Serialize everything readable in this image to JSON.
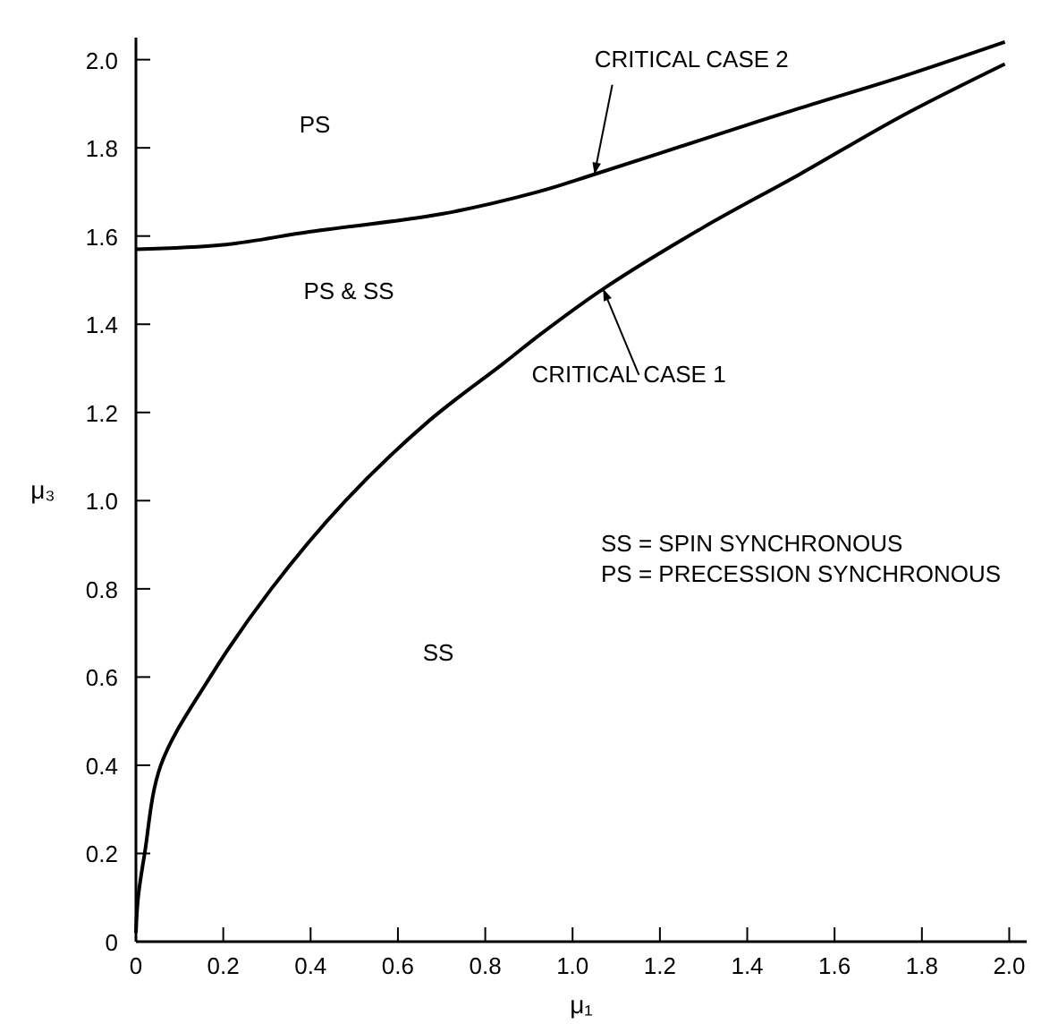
{
  "chart_data": {
    "type": "line",
    "xlabel": "μ₁",
    "ylabel": "μ₃",
    "xlim": [
      0,
      2.04
    ],
    "ylim": [
      0,
      2.05
    ],
    "xticks": [
      0,
      0.2,
      0.4,
      0.6,
      0.8,
      {
        "value": 1,
        "label": "1.0"
      },
      1.2,
      1.4,
      1.6,
      1.8,
      {
        "value": 2,
        "label": "2.0"
      }
    ],
    "yticks": [
      0,
      0.2,
      0.4,
      0.6,
      0.8,
      {
        "value": 1,
        "label": "1.0"
      },
      1.2,
      1.4,
      1.6,
      1.8,
      {
        "value": 2,
        "label": "2.0"
      }
    ],
    "grid": false,
    "marker": "none",
    "line_style": "solid",
    "series": [
      {
        "name": "CRITICAL CASE 1",
        "color": "#000000",
        "x": [
          0,
          0.005,
          0.02,
          0.057,
          0.17,
          0.31,
          0.48,
          0.67,
          0.84,
          0.93,
          1.07,
          1.3,
          1.52,
          1.75,
          1.99
        ],
        "values": [
          0.02,
          0.1,
          0.2,
          0.4,
          0.6,
          0.8,
          1.0,
          1.18,
          1.31,
          1.38,
          1.48,
          1.62,
          1.74,
          1.87,
          1.99
        ]
      },
      {
        "name": "CRITICAL CASE 2",
        "color": "#000000",
        "x": [
          0,
          0.2,
          0.4,
          0.7,
          0.92,
          1.05,
          1.3,
          1.52,
          1.75,
          1.99
        ],
        "values": [
          1.57,
          1.58,
          1.61,
          1.65,
          1.7,
          1.74,
          1.82,
          1.89,
          1.96,
          2.04
        ]
      }
    ],
    "annotations": [
      "PS",
      "PS & SS",
      "SS",
      "SS = SPIN SYNCHRONOUS",
      "PS = PRECESSION SYNCHRONOUS"
    ]
  }
}
